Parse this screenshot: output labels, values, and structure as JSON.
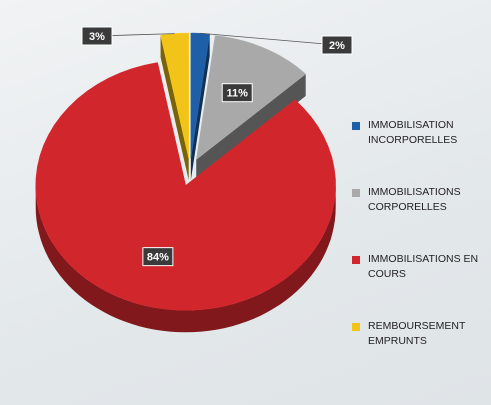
{
  "chart_data": {
    "type": "pie",
    "series": [
      {
        "name": "IMMOBILISATION INCORPORELLES",
        "color": "#1f5fa8"
      },
      {
        "name": "IMMOBILISATIONS CORPORELLES",
        "color": "#a9a9a9"
      },
      {
        "name": "IMMOBILISATIONS EN COURS",
        "color": "#d0262c"
      },
      {
        "name": "REMBOURSEMENT EMPRUNTS",
        "color": "#f2c318"
      }
    ],
    "values": [
      2,
      11,
      84,
      3
    ],
    "value_labels": [
      "2%",
      "11%",
      "84%",
      "3%"
    ],
    "legend": "right"
  }
}
